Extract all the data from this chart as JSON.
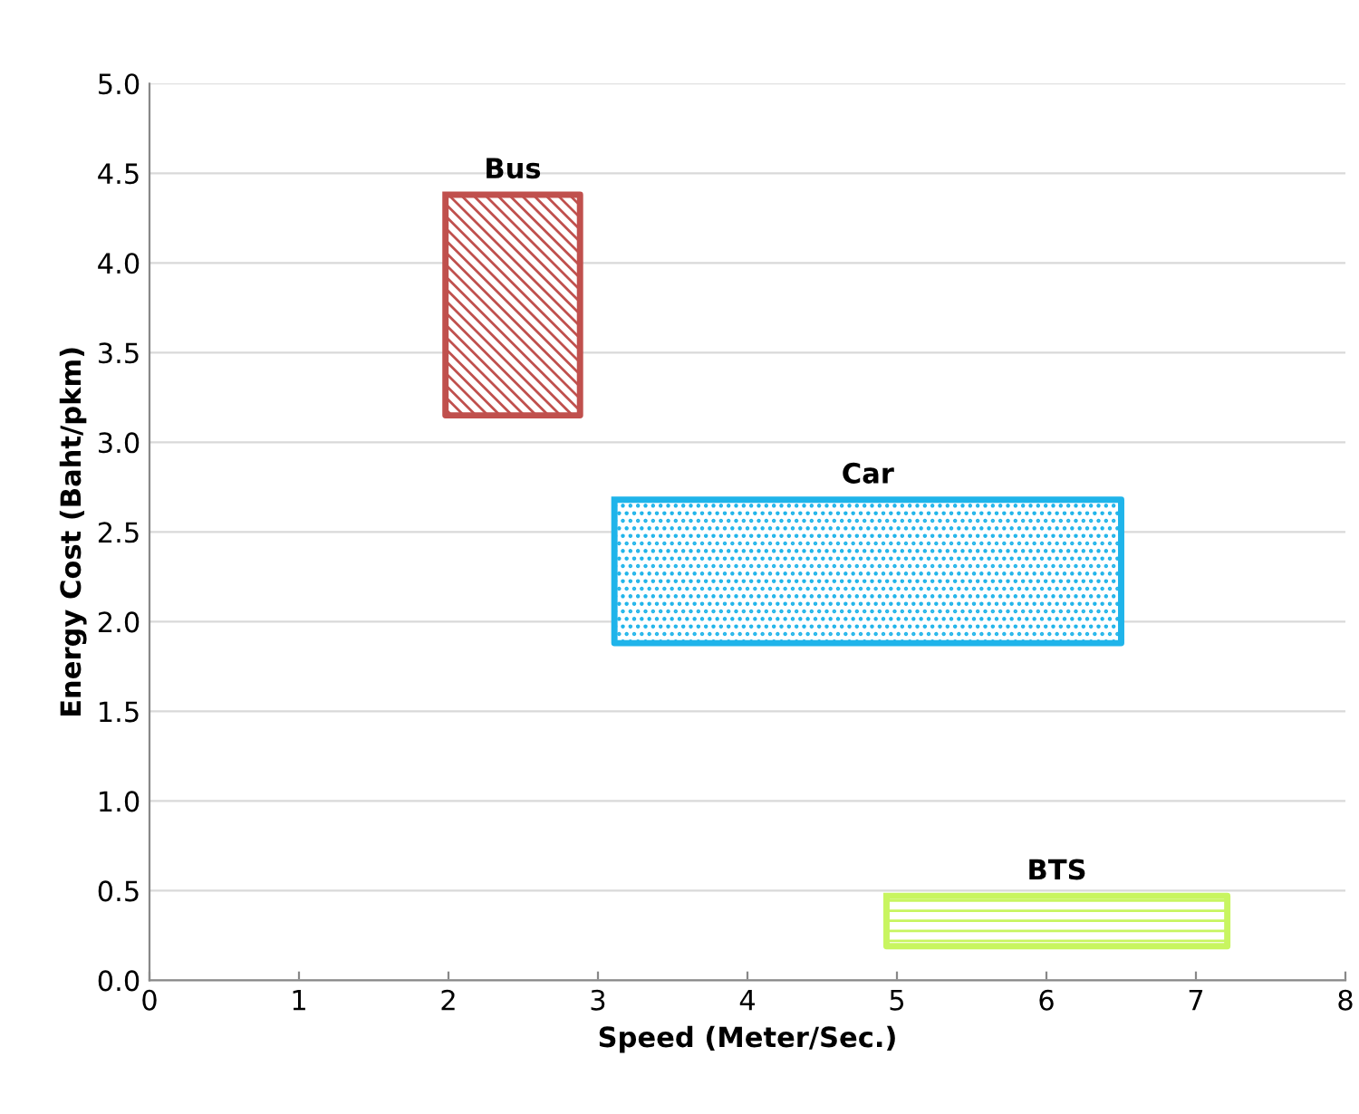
{
  "chart_data": {
    "type": "area",
    "xlabel": "Speed (Meter/Sec.)",
    "ylabel": "Energy Cost (Baht/pkm)",
    "xlim": [
      0,
      8
    ],
    "xticks": [
      0,
      1,
      2,
      3,
      4,
      5,
      6,
      7,
      8
    ],
    "ylim": [
      0,
      5
    ],
    "yticks": [
      {
        "value": 0,
        "label": "0.0"
      },
      {
        "value": 0.5,
        "label": "0.5"
      },
      {
        "value": 1,
        "label": "1.0"
      },
      {
        "value": 1.5,
        "label": "1.5"
      },
      {
        "value": 2,
        "label": "2.0"
      },
      {
        "value": 2.5,
        "label": "2.5"
      },
      {
        "value": 3,
        "label": "3.0"
      },
      {
        "value": 3.5,
        "label": "3.5"
      },
      {
        "value": 4,
        "label": "4.0"
      },
      {
        "value": 4.5,
        "label": "4.5"
      },
      {
        "value": 5,
        "label": "5.0"
      }
    ],
    "grid": "y",
    "marker": "none",
    "line_style": "solid",
    "series": [
      {
        "name": "Bus",
        "color": "#c0504d",
        "x": [
          1.98,
          2.88,
          2.88,
          1.98,
          1.98
        ],
        "values": [
          4.38,
          4.38,
          3.15,
          3.15,
          4.38
        ]
      },
      {
        "name": "Car",
        "color": "#1fb4ea",
        "x": [
          3.11,
          6.5,
          6.5,
          3.11,
          3.11
        ],
        "values": [
          2.68,
          2.68,
          1.88,
          1.88,
          2.68
        ]
      },
      {
        "name": "BTS",
        "color": "#c8f560",
        "x": [
          4.93,
          7.21,
          7.21,
          4.93,
          4.93
        ],
        "values": [
          0.47,
          0.47,
          0.19,
          0.19,
          0.47
        ]
      }
    ]
  }
}
